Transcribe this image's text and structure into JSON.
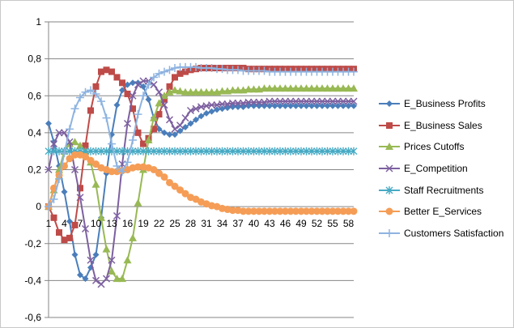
{
  "chart_data": {
    "type": "line",
    "title": "",
    "xlabel": "",
    "ylabel": "",
    "ylim": [
      -0.6,
      1
    ],
    "yticks": [
      "1",
      "0,8",
      "0,6",
      "0,4",
      "0,2",
      "0",
      "-0,2",
      "-0,4",
      "-0,6"
    ],
    "x": [
      1,
      2,
      3,
      4,
      5,
      6,
      7,
      8,
      9,
      10,
      11,
      12,
      13,
      14,
      15,
      16,
      17,
      18,
      19,
      20,
      21,
      22,
      23,
      24,
      25,
      26,
      27,
      28,
      29,
      30,
      31,
      32,
      33,
      34,
      35,
      36,
      37,
      38,
      39,
      40,
      41,
      42,
      43,
      44,
      45,
      46,
      47,
      48,
      49,
      50,
      51,
      52,
      53,
      54,
      55,
      56,
      57,
      58,
      59
    ],
    "xticklabels": [
      "1",
      "4",
      "7",
      "10",
      "13",
      "16",
      "19",
      "22",
      "25",
      "28",
      "31",
      "34",
      "37",
      "40",
      "43",
      "46",
      "49",
      "52",
      "55",
      "58"
    ],
    "grid": "horizontal",
    "legend_position": "right",
    "series": [
      {
        "name": "E_Business Profits",
        "color": "#4a7ebb",
        "marker": "diamond",
        "values": [
          0.45,
          0.35,
          0.22,
          0.08,
          -0.08,
          -0.26,
          -0.37,
          -0.39,
          -0.33,
          -0.26,
          -0.06,
          0.18,
          0.39,
          0.55,
          0.63,
          0.66,
          0.67,
          0.67,
          0.65,
          0.58,
          0.48,
          0.42,
          0.4,
          0.39,
          0.39,
          0.41,
          0.43,
          0.45,
          0.47,
          0.49,
          0.505,
          0.515,
          0.525,
          0.53,
          0.535,
          0.54,
          0.54,
          0.54,
          0.545,
          0.545,
          0.545,
          0.545,
          0.545,
          0.545,
          0.545,
          0.545,
          0.545,
          0.545,
          0.545,
          0.545,
          0.545,
          0.545,
          0.545,
          0.545,
          0.545,
          0.545,
          0.545,
          0.545,
          0.545
        ]
      },
      {
        "name": "E_Business Sales",
        "color": "#be4b48",
        "marker": "square",
        "values": [
          0.0,
          -0.06,
          -0.14,
          -0.18,
          -0.17,
          -0.1,
          0.1,
          0.33,
          0.52,
          0.65,
          0.73,
          0.74,
          0.73,
          0.7,
          0.67,
          0.61,
          0.53,
          0.4,
          0.34,
          0.37,
          0.42,
          0.5,
          0.58,
          0.65,
          0.7,
          0.72,
          0.73,
          0.74,
          0.745,
          0.75,
          0.75,
          0.75,
          0.75,
          0.75,
          0.75,
          0.75,
          0.75,
          0.75,
          0.745,
          0.745,
          0.745,
          0.745,
          0.745,
          0.745,
          0.745,
          0.745,
          0.745,
          0.745,
          0.745,
          0.745,
          0.745,
          0.745,
          0.745,
          0.745,
          0.745,
          0.745,
          0.745,
          0.745,
          0.745
        ]
      },
      {
        "name": "Prices Cutoffs",
        "color": "#98b954",
        "marker": "triangle",
        "values": [
          0.0,
          0.09,
          0.2,
          0.3,
          0.34,
          0.35,
          0.33,
          0.3,
          0.24,
          0.12,
          -0.06,
          -0.23,
          -0.35,
          -0.39,
          -0.39,
          -0.29,
          -0.17,
          0.02,
          0.2,
          0.36,
          0.48,
          0.56,
          0.6,
          0.62,
          0.63,
          0.625,
          0.62,
          0.62,
          0.62,
          0.62,
          0.62,
          0.62,
          0.62,
          0.625,
          0.625,
          0.63,
          0.63,
          0.63,
          0.635,
          0.635,
          0.635,
          0.64,
          0.64,
          0.64,
          0.64,
          0.64,
          0.64,
          0.64,
          0.64,
          0.64,
          0.64,
          0.64,
          0.64,
          0.64,
          0.64,
          0.64,
          0.64,
          0.64,
          0.64
        ]
      },
      {
        "name": "E_Competition",
        "color": "#7d60a0",
        "marker": "x",
        "values": [
          0.2,
          0.34,
          0.4,
          0.4,
          0.35,
          0.2,
          0.05,
          -0.12,
          -0.29,
          -0.4,
          -0.42,
          -0.39,
          -0.29,
          -0.05,
          0.23,
          0.45,
          0.6,
          0.66,
          0.68,
          0.68,
          0.66,
          0.62,
          0.55,
          0.47,
          0.42,
          0.44,
          0.48,
          0.52,
          0.53,
          0.54,
          0.545,
          0.55,
          0.55,
          0.555,
          0.555,
          0.56,
          0.56,
          0.56,
          0.565,
          0.565,
          0.565,
          0.565,
          0.57,
          0.57,
          0.57,
          0.57,
          0.57,
          0.57,
          0.57,
          0.57,
          0.57,
          0.57,
          0.57,
          0.57,
          0.57,
          0.57,
          0.57,
          0.57,
          0.57
        ]
      },
      {
        "name": "Staff Recruitments",
        "color": "#46aac4",
        "marker": "asterisk",
        "values": [
          0.3,
          0.3,
          0.3,
          0.3,
          0.3,
          0.3,
          0.3,
          0.3,
          0.3,
          0.3,
          0.3,
          0.3,
          0.3,
          0.3,
          0.3,
          0.3,
          0.3,
          0.3,
          0.3,
          0.3,
          0.3,
          0.3,
          0.3,
          0.3,
          0.3,
          0.3,
          0.3,
          0.3,
          0.3,
          0.3,
          0.3,
          0.3,
          0.3,
          0.3,
          0.3,
          0.3,
          0.3,
          0.3,
          0.3,
          0.3,
          0.3,
          0.3,
          0.3,
          0.3,
          0.3,
          0.3,
          0.3,
          0.3,
          0.3,
          0.3,
          0.3,
          0.3,
          0.3,
          0.3,
          0.3,
          0.3,
          0.3,
          0.3,
          0.3
        ]
      },
      {
        "name": "Better E_Services",
        "color": "#f59d56",
        "marker": "circle",
        "values": [
          0.0,
          0.1,
          0.17,
          0.22,
          0.26,
          0.28,
          0.28,
          0.27,
          0.25,
          0.23,
          0.21,
          0.2,
          0.19,
          0.19,
          0.195,
          0.2,
          0.21,
          0.215,
          0.215,
          0.21,
          0.2,
          0.18,
          0.16,
          0.13,
          0.11,
          0.09,
          0.07,
          0.05,
          0.04,
          0.025,
          0.015,
          0.005,
          0.0,
          -0.01,
          -0.015,
          -0.02,
          -0.02,
          -0.025,
          -0.025,
          -0.025,
          -0.025,
          -0.025,
          -0.025,
          -0.025,
          -0.025,
          -0.025,
          -0.025,
          -0.025,
          -0.025,
          -0.025,
          -0.025,
          -0.025,
          -0.025,
          -0.025,
          -0.025,
          -0.025,
          -0.025,
          -0.025,
          -0.025
        ]
      },
      {
        "name": "Customers Satisfaction",
        "color": "#8eb3e0",
        "marker": "plus",
        "values": [
          0.0,
          0.04,
          0.15,
          0.29,
          0.42,
          0.53,
          0.59,
          0.62,
          0.63,
          0.61,
          0.57,
          0.48,
          0.34,
          0.22,
          0.19,
          0.24,
          0.36,
          0.5,
          0.6,
          0.66,
          0.7,
          0.72,
          0.73,
          0.74,
          0.75,
          0.755,
          0.755,
          0.755,
          0.755,
          0.75,
          0.75,
          0.75,
          0.745,
          0.745,
          0.74,
          0.74,
          0.74,
          0.735,
          0.735,
          0.735,
          0.735,
          0.735,
          0.73,
          0.73,
          0.73,
          0.73,
          0.73,
          0.73,
          0.73,
          0.73,
          0.73,
          0.73,
          0.73,
          0.73,
          0.73,
          0.73,
          0.73,
          0.73,
          0.73
        ]
      }
    ]
  }
}
